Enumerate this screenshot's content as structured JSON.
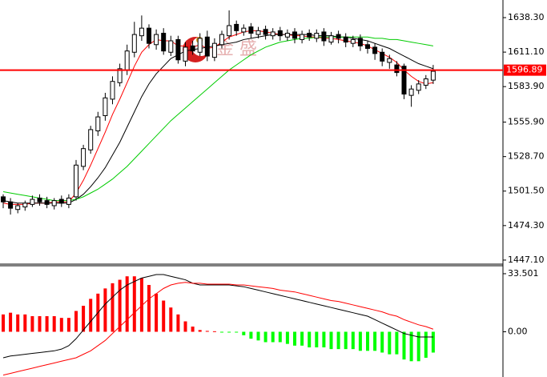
{
  "chart_data": [
    {
      "type": "candlestick",
      "watermark": "金 盛",
      "open": [
        1497,
        1493,
        1487,
        1489,
        1491,
        1496,
        1494,
        1490,
        1495,
        1491,
        1497,
        1521,
        1534,
        1549,
        1561,
        1574,
        1587,
        1597,
        1611,
        1624,
        1630,
        1617,
        1626,
        1611,
        1621,
        1604,
        1616,
        1611,
        1623,
        1607,
        1617,
        1624,
        1633,
        1627,
        1631,
        1625,
        1629,
        1624,
        1628,
        1623,
        1627,
        1621,
        1626,
        1622,
        1627,
        1619,
        1625,
        1623,
        1618,
        1622,
        1617,
        1615,
        1611,
        1603,
        1601,
        1600,
        1577,
        1581,
        1585,
        1589
      ],
      "high": [
        1499,
        1496,
        1492,
        1494,
        1498,
        1499,
        1497,
        1496,
        1498,
        1499,
        1526,
        1538,
        1553,
        1564,
        1579,
        1592,
        1602,
        1617,
        1635,
        1640,
        1633,
        1629,
        1630,
        1624,
        1624,
        1619,
        1620,
        1626,
        1628,
        1622,
        1628,
        1644,
        1636,
        1633,
        1634,
        1631,
        1632,
        1630,
        1631,
        1629,
        1630,
        1628,
        1629,
        1629,
        1630,
        1627,
        1628,
        1626,
        1624,
        1625,
        1620,
        1618,
        1614,
        1609,
        1604,
        1602,
        1585,
        1589,
        1593,
        1601
      ],
      "low": [
        1488,
        1483,
        1484,
        1486,
        1489,
        1490,
        1488,
        1487,
        1489,
        1488,
        1494,
        1518,
        1531,
        1545,
        1557,
        1570,
        1584,
        1593,
        1607,
        1620,
        1614,
        1613,
        1609,
        1608,
        1602,
        1600,
        1609,
        1608,
        1604,
        1604,
        1614,
        1621,
        1624,
        1624,
        1622,
        1622,
        1621,
        1621,
        1620,
        1620,
        1618,
        1618,
        1620,
        1619,
        1616,
        1617,
        1618,
        1615,
        1615,
        1612,
        1610,
        1605,
        1600,
        1598,
        1592,
        1574,
        1568,
        1578,
        1582,
        1586
      ],
      "close": [
        1493,
        1488,
        1490,
        1492,
        1495,
        1493,
        1491,
        1494,
        1492,
        1496,
        1522,
        1535,
        1550,
        1560,
        1575,
        1588,
        1598,
        1612,
        1625,
        1630,
        1618,
        1625,
        1612,
        1620,
        1605,
        1615,
        1612,
        1622,
        1608,
        1618,
        1625,
        1632,
        1628,
        1630,
        1626,
        1628,
        1625,
        1627,
        1624,
        1626,
        1622,
        1625,
        1623,
        1626,
        1620,
        1624,
        1622,
        1619,
        1621,
        1616,
        1614,
        1610,
        1604,
        1606,
        1595,
        1578,
        1582,
        1586,
        1590,
        1596
      ],
      "series": [
        {
          "color": "#ff0000",
          "values": [
            1492,
            1491,
            1491,
            1491,
            1492,
            1492,
            1492,
            1493,
            1493,
            1493,
            1500,
            1510,
            1522,
            1535,
            1548,
            1562,
            1574,
            1587,
            1600,
            1611,
            1617,
            1621,
            1620,
            1620,
            1616,
            1616,
            1615,
            1617,
            1614,
            1615,
            1619,
            1623,
            1625,
            1627,
            1628,
            1628,
            1627,
            1626,
            1625,
            1625,
            1624,
            1624,
            1623,
            1623,
            1622,
            1622,
            1621,
            1620,
            1619,
            1618,
            1616,
            1613,
            1610,
            1607,
            1603,
            1597,
            1592,
            1588,
            1586,
            1587
          ]
        },
        {
          "color": "#000000",
          "values": [
            1494,
            1493,
            1492,
            1492,
            1492,
            1492,
            1492,
            1492,
            1492,
            1492,
            1495,
            1499,
            1505,
            1512,
            1520,
            1530,
            1540,
            1552,
            1564,
            1576,
            1586,
            1594,
            1600,
            1606,
            1609,
            1612,
            1613,
            1614,
            1615,
            1616,
            1617,
            1618,
            1619,
            1621,
            1622,
            1623,
            1624,
            1625,
            1625,
            1625,
            1625,
            1625,
            1625,
            1624,
            1624,
            1624,
            1623,
            1623,
            1622,
            1621,
            1620,
            1618,
            1616,
            1614,
            1611,
            1608,
            1605,
            1602,
            1600,
            1598
          ]
        },
        {
          "color": "#00cc00",
          "values": [
            1501,
            1500,
            1499,
            1498,
            1497,
            1496,
            1495,
            1494,
            1494,
            1494,
            1495,
            1497,
            1500,
            1503,
            1507,
            1511,
            1516,
            1521,
            1527,
            1533,
            1539,
            1545,
            1551,
            1557,
            1562,
            1567,
            1572,
            1577,
            1582,
            1587,
            1592,
            1597,
            1601,
            1605,
            1609,
            1612,
            1615,
            1617,
            1619,
            1620,
            1621,
            1622,
            1622,
            1623,
            1623,
            1623,
            1623,
            1623,
            1623,
            1623,
            1623,
            1622,
            1622,
            1621,
            1621,
            1620,
            1619,
            1618,
            1617,
            1616
          ]
        }
      ],
      "price_line": 1596.89,
      "price_line_color": "#ff0000",
      "ylim": [
        1443.9,
        1652.2
      ],
      "yticks": [
        {
          "value": 1638.3,
          "label": "1638.30"
        },
        {
          "value": 1611.1,
          "label": "1611.10"
        },
        {
          "value": 1583.9,
          "label": "1583.90"
        },
        {
          "value": 1555.9,
          "label": "1555.90"
        },
        {
          "value": 1528.7,
          "label": "1528.70"
        },
        {
          "value": 1501.5,
          "label": "1501.50"
        },
        {
          "value": 1474.3,
          "label": "1474.30"
        },
        {
          "value": 1447.1,
          "label": "1447.10"
        }
      ]
    },
    {
      "type": "macd",
      "histogram": [
        10,
        11,
        10,
        10,
        9,
        9,
        9,
        9,
        8,
        8,
        12,
        15,
        19,
        22,
        25,
        28,
        30,
        32,
        32,
        31,
        27,
        22,
        18,
        14,
        10,
        6,
        3,
        1,
        0.5,
        0.3,
        -0.2,
        -0.3,
        -0.4,
        -2,
        -4,
        -5,
        -6,
        -6,
        -6,
        -7,
        -8,
        -8,
        -9,
        -9,
        -9,
        -10,
        -10,
        -10,
        -10,
        -11,
        -11,
        -11,
        -12,
        -13,
        -13,
        -16,
        -17,
        -17,
        -15,
        -12
      ],
      "positive_color": "#ff0000",
      "negative_color": "#00ff00",
      "series": [
        {
          "color": "#000000",
          "values": [
            -15,
            -14,
            -13.5,
            -13,
            -12.5,
            -12,
            -11.5,
            -11,
            -10,
            -8,
            -4,
            1,
            6,
            11,
            16,
            20,
            24,
            27,
            29,
            31,
            32,
            33,
            33,
            32,
            31,
            30,
            28,
            27,
            27,
            27,
            27,
            27,
            26.5,
            26,
            25,
            24,
            23,
            22,
            21,
            20,
            19,
            18,
            17,
            16,
            15,
            14,
            13,
            12,
            11,
            10,
            9,
            7,
            5,
            3,
            1,
            -1,
            -2,
            -3,
            -3,
            -3
          ]
        },
        {
          "color": "#ff0000",
          "values": [
            -25,
            -24,
            -23,
            -22,
            -21,
            -20,
            -19,
            -18,
            -17,
            -16,
            -15,
            -13,
            -11,
            -8,
            -5,
            -1,
            3,
            7,
            11,
            15,
            19,
            22,
            25,
            27,
            28,
            28.5,
            28,
            28,
            27.5,
            27.5,
            27.5,
            27.5,
            27,
            27,
            26.5,
            26,
            25.5,
            25,
            24,
            23.5,
            23,
            22,
            21,
            20,
            19,
            18,
            17.5,
            16.5,
            15.5,
            14.5,
            13.5,
            12.5,
            11.5,
            10,
            9,
            7,
            5.5,
            4,
            3,
            1.5
          ]
        }
      ],
      "ylim": [
        -26.1,
        38.1
      ],
      "yticks": [
        33.501,
        {
          "value": 0,
          "label": "0.00"
        }
      ]
    }
  ]
}
